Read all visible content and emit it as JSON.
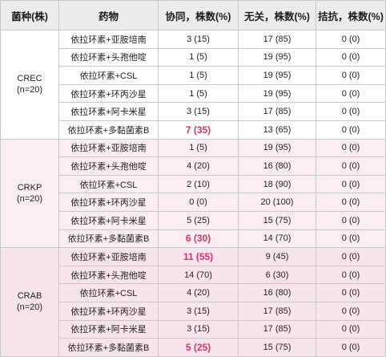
{
  "header": {
    "strain": "菌种(株)",
    "drug": "药物",
    "synergy": "协同，株数(%)",
    "indifferent": "无关，株数(%)",
    "antagonism": "拮抗，株数(%)"
  },
  "colors": {
    "header_bg": "#ececec",
    "group_bg_0": "#ffffff",
    "group_bg_1": "#fbeef3",
    "group_bg_2": "#f8e4ec",
    "highlight_text": "#d6336c",
    "border": "#c8c8c8"
  },
  "groups": [
    {
      "name": "CREC",
      "n": "(n=20)",
      "rows": [
        {
          "drug": "依拉环素+亚胺培南",
          "synergy": "3 (15)",
          "indifferent": "17 (85)",
          "antagonism": "0 (0)",
          "highlight": false
        },
        {
          "drug": "依拉环素+头孢他啶",
          "synergy": "1 (5)",
          "indifferent": "19 (95)",
          "antagonism": "0 (0)",
          "highlight": false
        },
        {
          "drug": "依拉环素+CSL",
          "synergy": "1 (5)",
          "indifferent": "19 (95)",
          "antagonism": "0 (0)",
          "highlight": false
        },
        {
          "drug": "依拉环素+环丙沙星",
          "synergy": "1 (5)",
          "indifferent": "19 (95)",
          "antagonism": "0 (0)",
          "highlight": false
        },
        {
          "drug": "依拉环素+阿卡米星",
          "synergy": "3 (15)",
          "indifferent": "17 (85)",
          "antagonism": "0 (0)",
          "highlight": false
        },
        {
          "drug": "依拉环素+多黏菌素B",
          "synergy": "7 (35)",
          "indifferent": "13 (65)",
          "antagonism": "0 (0)",
          "highlight": true
        }
      ]
    },
    {
      "name": "CRKP",
      "n": "(n=20)",
      "rows": [
        {
          "drug": "依拉环素+亚胺培南",
          "synergy": "1 (5)",
          "indifferent": "19 (95)",
          "antagonism": "0 (0)",
          "highlight": false
        },
        {
          "drug": "依拉环素+头孢他啶",
          "synergy": "4 (20)",
          "indifferent": "16 (80)",
          "antagonism": "0 (0)",
          "highlight": false
        },
        {
          "drug": "依拉环素+CSL",
          "synergy": "2 (10)",
          "indifferent": "18 (90)",
          "antagonism": "0 (0)",
          "highlight": false
        },
        {
          "drug": "依拉环素+环丙沙星",
          "synergy": "0 (0)",
          "indifferent": "20 (100)",
          "antagonism": "0 (0)",
          "highlight": false
        },
        {
          "drug": "依拉环素+阿卡米星",
          "synergy": "5 (25)",
          "indifferent": "15 (75)",
          "antagonism": "0 (0)",
          "highlight": false
        },
        {
          "drug": "依拉环素+多黏菌素B",
          "synergy": "6 (30)",
          "indifferent": "14 (70)",
          "antagonism": "0 (0)",
          "highlight": true
        }
      ]
    },
    {
      "name": "CRAB",
      "n": "(n=20)",
      "rows": [
        {
          "drug": "依拉环素+亚胺培南",
          "synergy": "11 (55)",
          "indifferent": "9 (45)",
          "antagonism": "0 (0)",
          "highlight": true
        },
        {
          "drug": "依拉环素+头孢他啶",
          "synergy": "14 (70)",
          "indifferent": "6 (30)",
          "antagonism": "0 (0)",
          "highlight": false
        },
        {
          "drug": "依拉环素+CSL",
          "synergy": "4 (20)",
          "indifferent": "16 (80)",
          "antagonism": "0 (0)",
          "highlight": false
        },
        {
          "drug": "依拉环素+环丙沙星",
          "synergy": "3 (15)",
          "indifferent": "17 (85)",
          "antagonism": "0 (0)",
          "highlight": false
        },
        {
          "drug": "依拉环素+阿卡米星",
          "synergy": "3 (15)",
          "indifferent": "17 (85)",
          "antagonism": "0 (0)",
          "highlight": false
        },
        {
          "drug": "依拉环素+多黏菌素B",
          "synergy": "5 (25)",
          "indifferent": "15 (75)",
          "antagonism": "0 (0)",
          "highlight": true
        }
      ]
    }
  ]
}
